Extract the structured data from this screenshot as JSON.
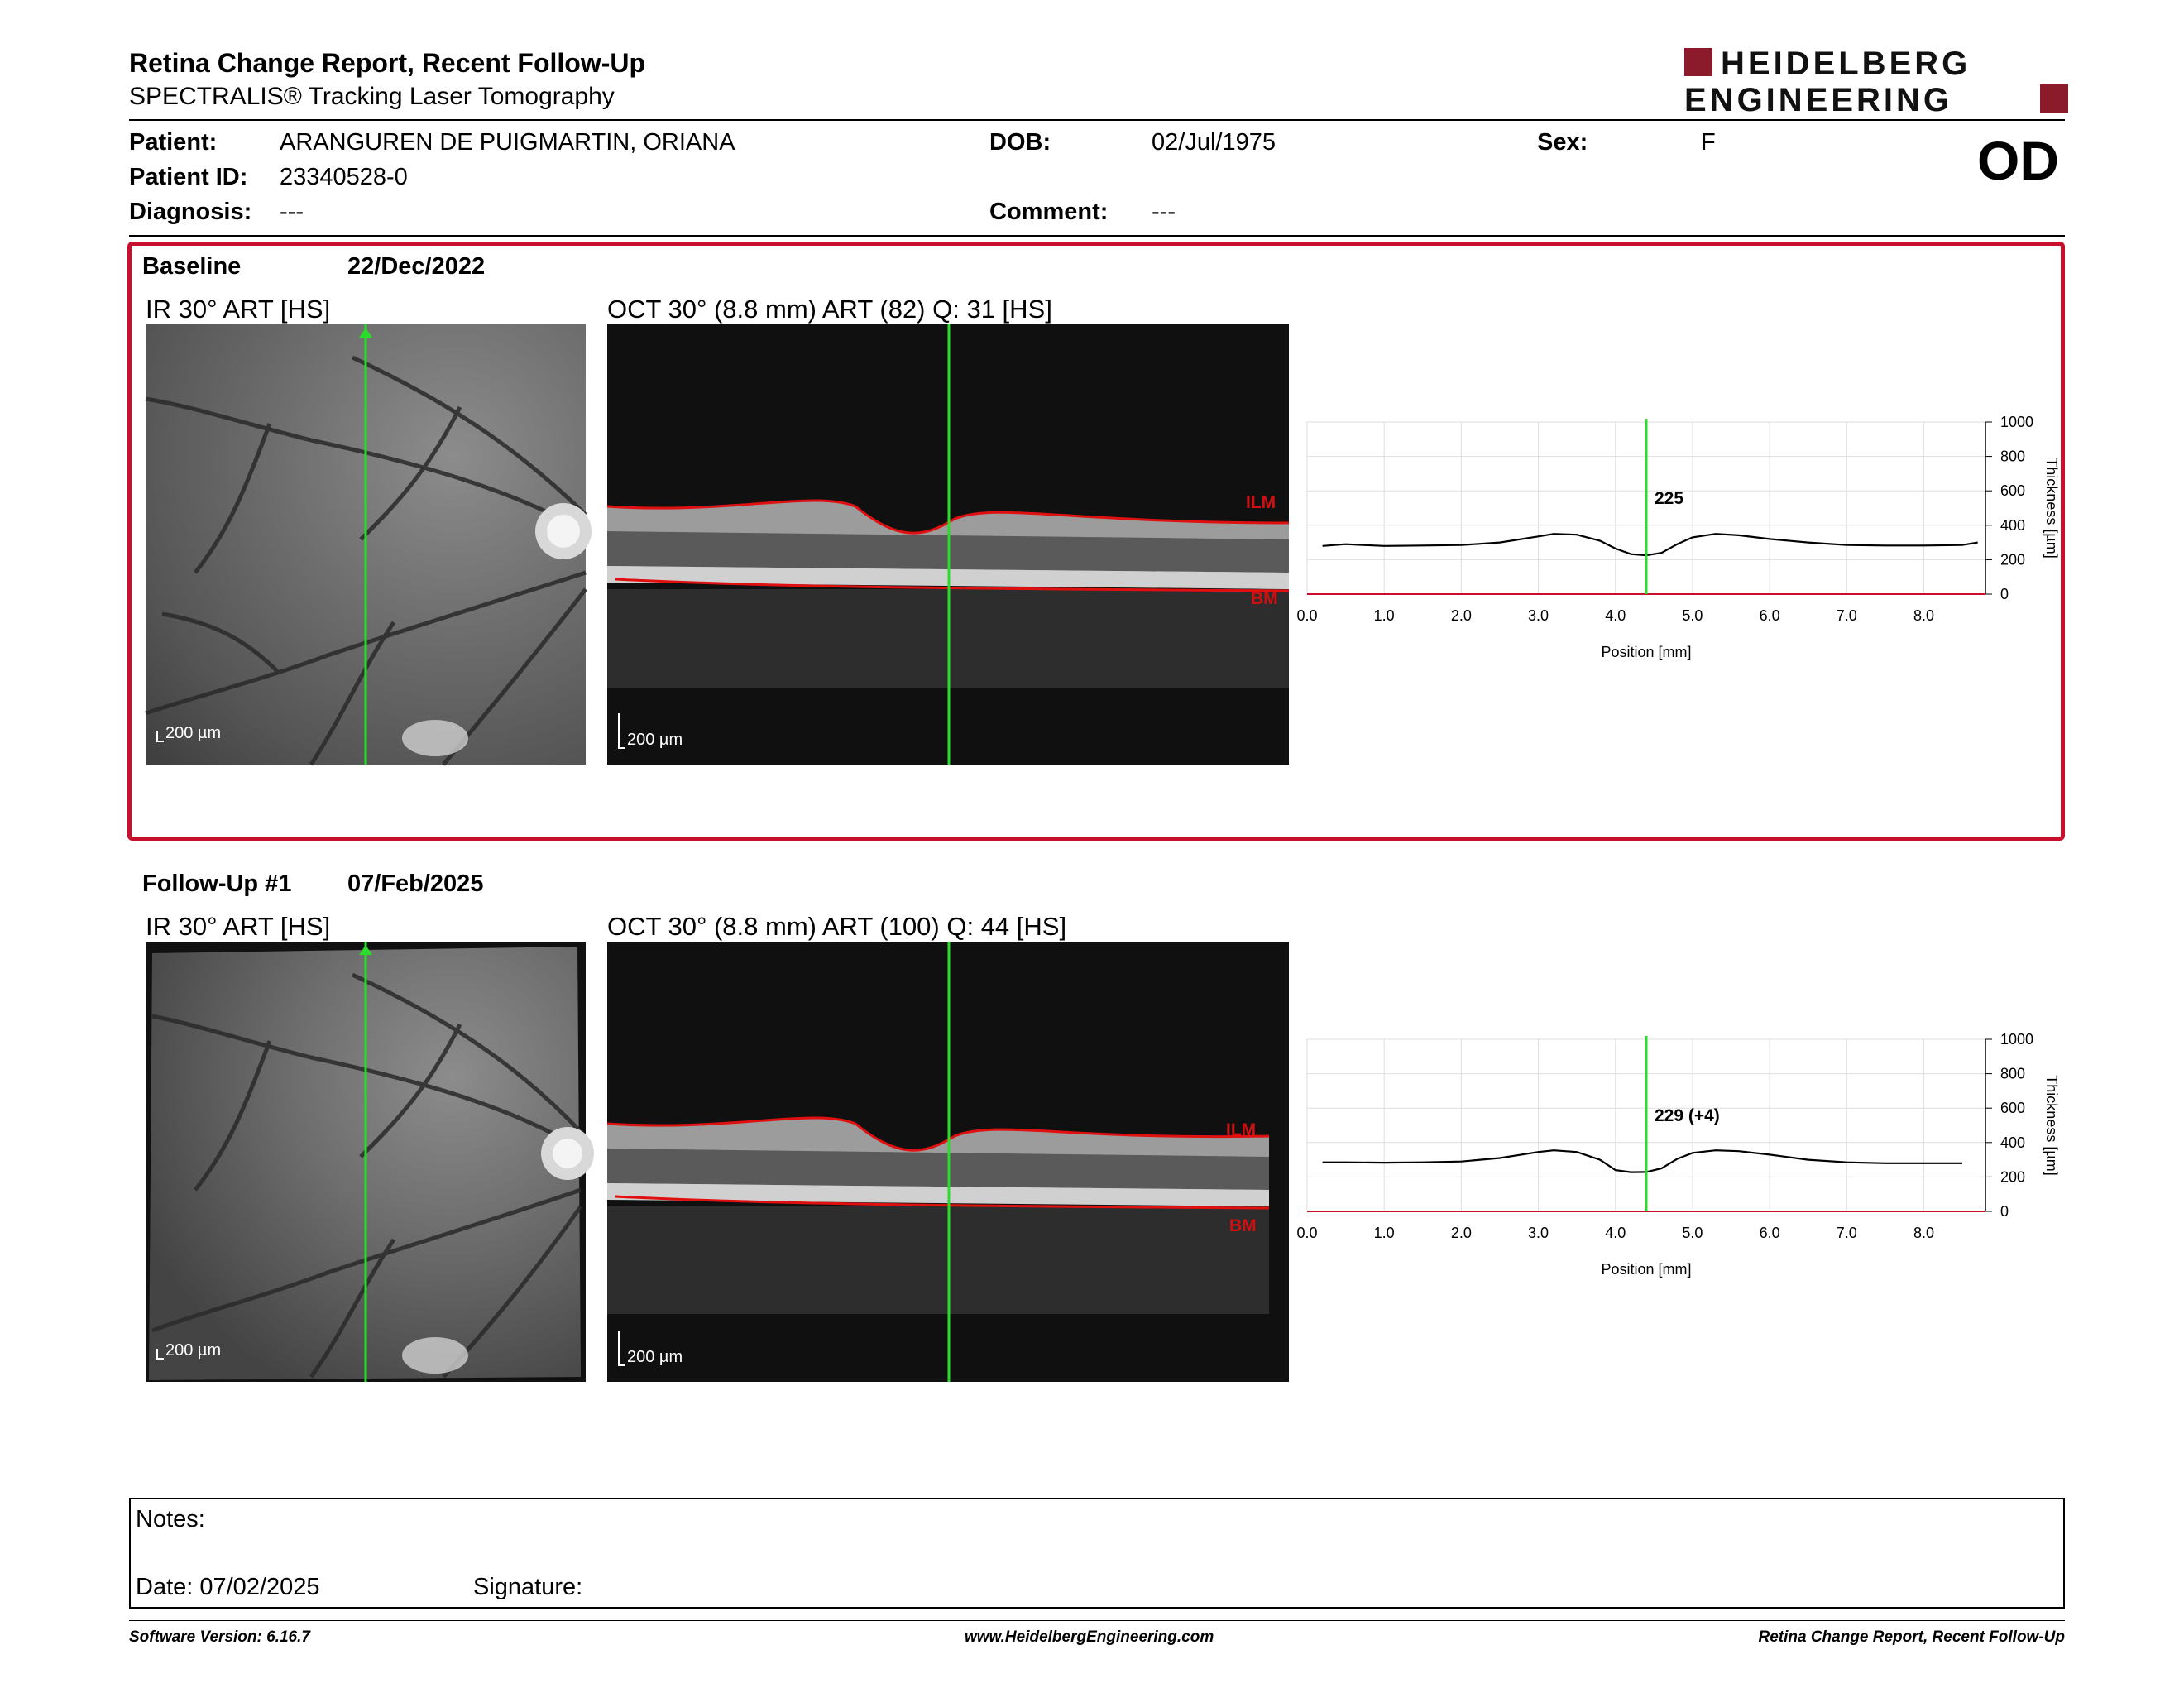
{
  "header": {
    "title": "Retina Change Report, Recent Follow-Up",
    "subtitle": "SPECTRALIS® Tracking Laser Tomography",
    "logo_line1": "HEIDELBERG",
    "logo_line2": "ENGINEERING"
  },
  "patient": {
    "patient_label": "Patient:",
    "patient_value": "ARANGUREN DE PUIGMARTIN, ORIANA",
    "id_label": "Patient ID:",
    "id_value": "23340528-0",
    "diagnosis_label": "Diagnosis:",
    "diagnosis_value": "---",
    "dob_label": "DOB:",
    "dob_value": "02/Jul/1975",
    "comment_label": "Comment:",
    "comment_value": "---",
    "sex_label": "Sex:",
    "sex_value": "F",
    "eye": "OD"
  },
  "baseline": {
    "label": "Baseline",
    "date": "22/Dec/2022",
    "ir_title": "IR 30° ART [HS]",
    "oct_title": "OCT 30° (8.8 mm) ART (82) Q: 31 [HS]",
    "ir_scale": "200 µm",
    "oct_scale": "200 µm",
    "ilm_label": "ILM",
    "bm_label": "BM"
  },
  "followup": {
    "label": "Follow-Up #1",
    "date": "07/Feb/2025",
    "ir_title": "IR 30° ART [HS]",
    "oct_title": "OCT 30° (8.8 mm) ART (100) Q: 44 [HS]",
    "ir_scale": "200 µm",
    "oct_scale": "200 µm",
    "ilm_label": "ILM",
    "bm_label": "BM"
  },
  "chart_data": [
    {
      "type": "line",
      "xlabel": "Position [mm]",
      "ylabel": "Thickness [µm]",
      "xlim": [
        0,
        8.8
      ],
      "ylim": [
        0,
        1000
      ],
      "xticks": [
        "0.0",
        "1.0",
        "2.0",
        "3.0",
        "4.0",
        "5.0",
        "6.0",
        "7.0",
        "8.0"
      ],
      "yticks": [
        "0",
        "200",
        "400",
        "600",
        "800",
        "1000"
      ],
      "marker_x": 4.4,
      "marker_label": "225",
      "x": [
        0.2,
        0.5,
        1.0,
        1.5,
        2.0,
        2.5,
        3.0,
        3.2,
        3.5,
        3.8,
        4.0,
        4.2,
        4.4,
        4.6,
        4.8,
        5.0,
        5.3,
        5.6,
        6.0,
        6.5,
        7.0,
        7.5,
        8.0,
        8.5,
        8.7
      ],
      "y": [
        280,
        290,
        280,
        282,
        285,
        300,
        335,
        350,
        345,
        310,
        265,
        232,
        225,
        240,
        290,
        330,
        350,
        342,
        320,
        300,
        285,
        282,
        282,
        285,
        300
      ]
    },
    {
      "type": "line",
      "xlabel": "Position [mm]",
      "ylabel": "Thickness [µm]",
      "xlim": [
        0,
        8.8
      ],
      "ylim": [
        0,
        1000
      ],
      "xticks": [
        "0.0",
        "1.0",
        "2.0",
        "3.0",
        "4.0",
        "5.0",
        "6.0",
        "7.0",
        "8.0"
      ],
      "yticks": [
        "0",
        "200",
        "400",
        "600",
        "800",
        "1000"
      ],
      "marker_x": 4.4,
      "marker_label": "229 (+4)",
      "x": [
        0.2,
        0.5,
        1.0,
        1.5,
        2.0,
        2.5,
        3.0,
        3.2,
        3.5,
        3.8,
        4.0,
        4.2,
        4.4,
        4.6,
        4.8,
        5.0,
        5.3,
        5.6,
        6.0,
        6.5,
        7.0,
        7.5,
        8.0,
        8.5
      ],
      "y": [
        285,
        285,
        283,
        285,
        290,
        310,
        345,
        355,
        345,
        300,
        240,
        228,
        229,
        250,
        305,
        340,
        355,
        350,
        330,
        300,
        285,
        280,
        280,
        280
      ]
    }
  ],
  "notes": {
    "notes_label": "Notes:",
    "date_label": "Date: 07/02/2025",
    "signature_label": "Signature:"
  },
  "footer": {
    "version": "Software Version: 6.16.7",
    "url": "www.HeidelbergEngineering.com",
    "report": "Retina Change Report, Recent Follow-Up"
  }
}
